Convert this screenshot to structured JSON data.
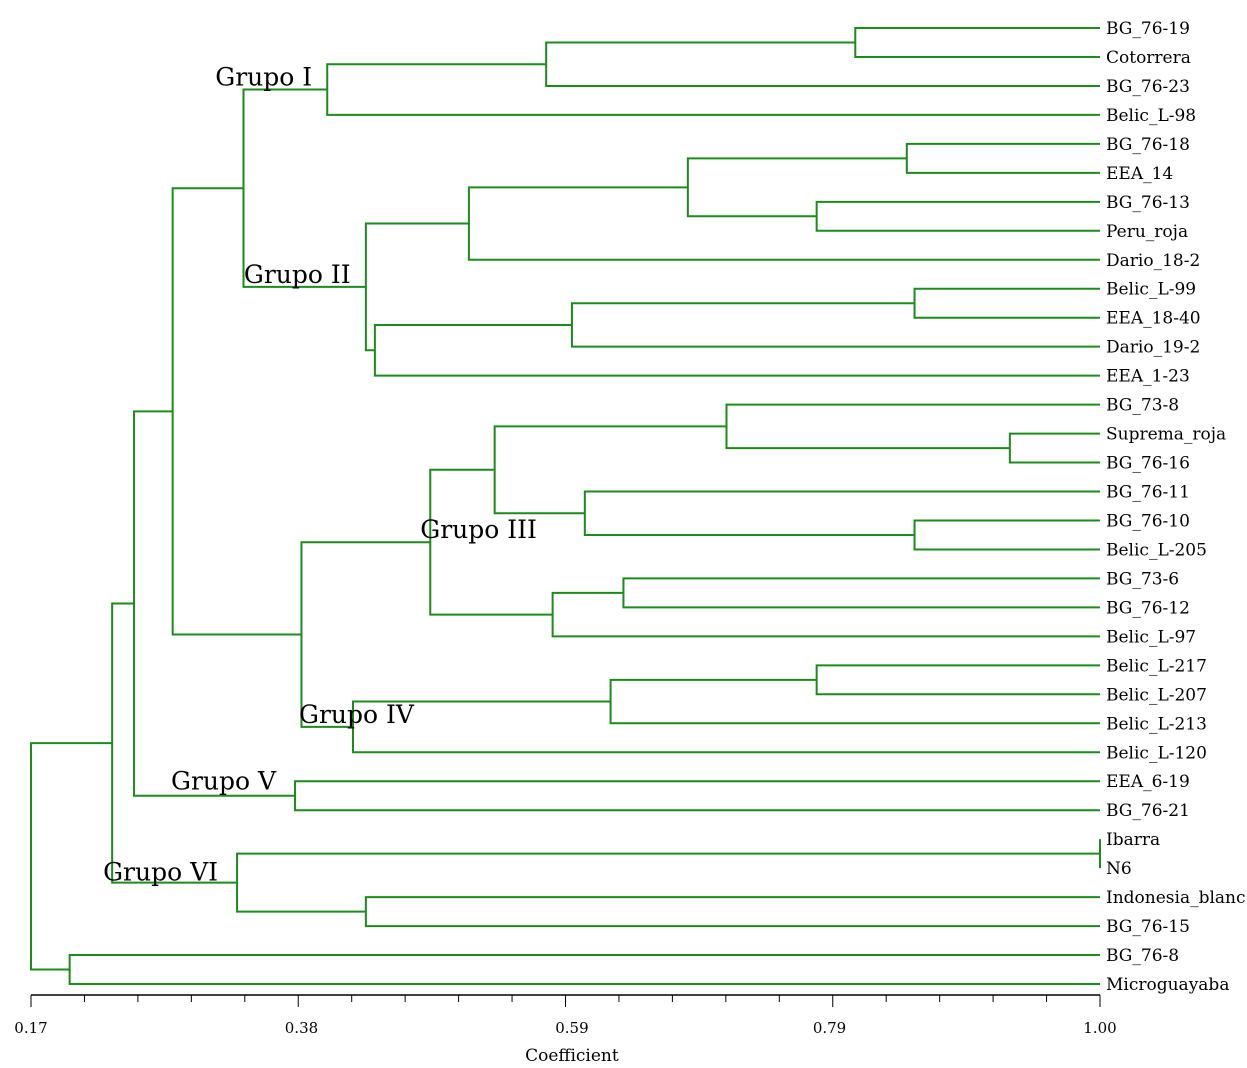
{
  "branch_color": "#1a8c1a",
  "leaves": [
    "BG_76-19",
    "Cotorrera",
    "BG_76-23",
    "Belic_L-98",
    "BG_76-18",
    "EEA_14",
    "BG_76-13",
    "Peru_roja",
    "Dario_18-2",
    "Belic_L-99",
    "EEA_18-40",
    "Dario_19-2",
    "EEA_1-23",
    "BG_73-8",
    "Suprema_roja",
    "BG_76-16",
    "BG_76-11",
    "BG_76-10",
    "Belic_L-205",
    "BG_73-6",
    "BG_76-12",
    "Belic_L-97",
    "Belic_L-217",
    "Belic_L-207",
    "Belic_L-213",
    "Belic_L-120",
    "EEA_6-19",
    "BG_76-21",
    "Ibarra",
    "N6",
    "Indonesia_blanc",
    "BG_76-15",
    "BG_76-8",
    "Microguayaba"
  ],
  "merges": [
    {
      "a": 0,
      "b": 1,
      "sim": 0.81
    },
    {
      "a": "n0",
      "b": 2,
      "sim": 0.57
    },
    {
      "a": "n1",
      "b": 3,
      "sim": 0.4
    },
    {
      "a": 4,
      "b": 5,
      "sim": 0.85
    },
    {
      "a": 6,
      "b": 7,
      "sim": 0.78
    },
    {
      "a": "n3",
      "b": "n4",
      "sim": 0.68
    },
    {
      "a": "n5",
      "b": 8,
      "sim": 0.51
    },
    {
      "a": 9,
      "b": 10,
      "sim": 0.856
    },
    {
      "a": "n7",
      "b": 11,
      "sim": 0.59
    },
    {
      "a": "n8",
      "b": 12,
      "sim": 0.437
    },
    {
      "a": "n6",
      "b": "n9",
      "sim": 0.43
    },
    {
      "a": "n2",
      "b": "n10",
      "sim": 0.335
    },
    {
      "a": 14,
      "b": 15,
      "sim": 0.93
    },
    {
      "a": 13,
      "b": "n12",
      "sim": 0.71
    },
    {
      "a": 17,
      "b": 18,
      "sim": 0.856
    },
    {
      "a": 16,
      "b": "n14",
      "sim": 0.6
    },
    {
      "a": "n13",
      "b": "n15",
      "sim": 0.53
    },
    {
      "a": 19,
      "b": 20,
      "sim": 0.63
    },
    {
      "a": "n17",
      "b": 21,
      "sim": 0.575
    },
    {
      "a": "n16",
      "b": "n18",
      "sim": 0.48
    },
    {
      "a": 22,
      "b": 23,
      "sim": 0.78
    },
    {
      "a": "n20",
      "b": 24,
      "sim": 0.62
    },
    {
      "a": "n21",
      "b": 25,
      "sim": 0.42
    },
    {
      "a": "n19",
      "b": "n22",
      "sim": 0.38
    },
    {
      "a": "n11",
      "b": "n23",
      "sim": 0.28
    },
    {
      "a": 26,
      "b": 27,
      "sim": 0.375
    },
    {
      "a": "n24",
      "b": "n25",
      "sim": 0.25
    },
    {
      "a": 28,
      "b": 29,
      "sim": 1.0
    },
    {
      "a": 30,
      "b": 31,
      "sim": 0.43
    },
    {
      "a": "n27",
      "b": "n28",
      "sim": 0.33
    },
    {
      "a": "n26",
      "b": "n29",
      "sim": 0.233
    },
    {
      "a": 32,
      "b": 33,
      "sim": 0.2
    },
    {
      "a": "n30",
      "b": "n31",
      "sim": 0.17
    }
  ],
  "groups": [
    {
      "label": "Grupo I",
      "node": "n2"
    },
    {
      "label": "Grupo II",
      "node": "n10"
    },
    {
      "label": "Grupo III",
      "node": "n19"
    },
    {
      "label": "Grupo IV",
      "node": "n22"
    },
    {
      "label": "Grupo V",
      "node": "n25"
    },
    {
      "label": "Grupo VI",
      "node": "n29"
    }
  ],
  "axis": {
    "title": "Coefficient",
    "min": 0.17,
    "max": 1.0,
    "tick_step": 0.0415,
    "labeled_ticks": [
      {
        "value": 0.17,
        "label": "0.17"
      },
      {
        "value": 0.38,
        "label": "0.38"
      },
      {
        "value": 0.59,
        "label": "0.59"
      },
      {
        "value": 0.79,
        "label": "0.79"
      },
      {
        "value": 1.0,
        "label": "1.00"
      }
    ]
  }
}
